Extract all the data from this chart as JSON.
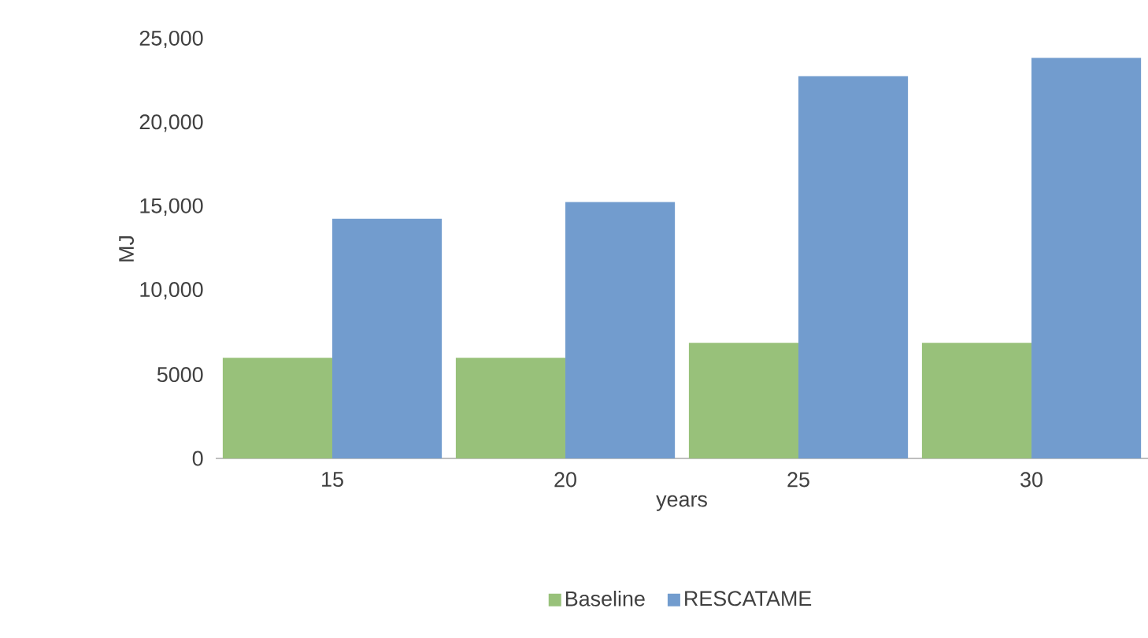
{
  "chart_data": {
    "type": "bar",
    "xlabel": "years",
    "ylabel": "MJ",
    "categories": [
      "15",
      "20",
      "25",
      "30"
    ],
    "series": [
      {
        "name": "Baseline",
        "color": "#98c17a",
        "values": [
          6000,
          6000,
          6900,
          6900
        ]
      },
      {
        "name": "RESCATAME",
        "color": "#729cce",
        "values": [
          14300,
          15300,
          22800,
          23900
        ]
      }
    ],
    "ylim": [
      0,
      25000
    ],
    "yticks": [
      0,
      5000,
      {
        "value": 10000,
        "label": "10,000"
      },
      {
        "value": 15000,
        "label": "15,000"
      },
      {
        "value": 20000,
        "label": "20,000"
      },
      {
        "value": 25000,
        "label": "25,000"
      }
    ],
    "legend": "bottom"
  }
}
